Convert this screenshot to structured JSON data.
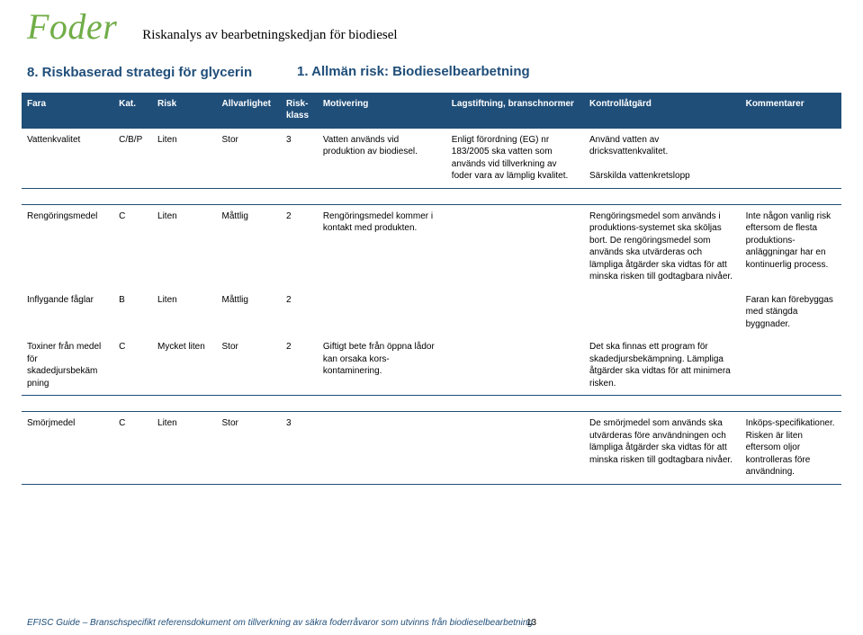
{
  "header": {
    "brand": "Foder",
    "tagline": "Riskanalys av bearbetningskedjan för biodiesel"
  },
  "titles": {
    "left": "8. Riskbaserad strategi för glycerin",
    "right": "1. Allmän risk: Biodieselbearbetning"
  },
  "columns": {
    "fara": "Fara",
    "kat": "Kat.",
    "risk": "Risk",
    "sev": "Allvarlighet",
    "klass": "Risk-klass",
    "motiv": "Motivering",
    "lag": "Lagstiftning, branschnormer",
    "ctrl": "Kontrollåtgärd",
    "komm": "Kommentarer"
  },
  "groups": [
    {
      "rows": [
        {
          "fara": "Vattenkvalitet",
          "kat": "C/B/P",
          "risk": "Liten",
          "sev": "Stor",
          "klass": "3",
          "motiv": "Vatten används vid produktion av biodiesel.",
          "lag": "Enligt förordning (EG) nr 183/2005 ska vatten som används vid tillverkning av foder vara av lämplig kvalitet.",
          "ctrl": "Använd vatten av dricksvattenkvalitet.\n\nSärskilda vattenkretslopp",
          "komm": ""
        }
      ]
    },
    {
      "rows": [
        {
          "fara": "Rengöringsmedel",
          "kat": "C",
          "risk": "Liten",
          "sev": "Måttlig",
          "klass": "2",
          "motiv": "Rengöringsmedel kommer i kontakt med produkten.",
          "lag": "",
          "ctrl": "Rengöringsmedel som används i produktions-systemet ska sköljas bort. De rengöringsmedel som används ska utvärderas och lämpliga åtgärder ska vidtas för att minska risken till godtagbara nivåer.",
          "komm": "Inte någon vanlig risk eftersom de flesta produktions-anläggningar har en kontinuerlig process."
        },
        {
          "fara": "Inflygande fåglar",
          "kat": "B",
          "risk": "Liten",
          "sev": "Måttlig",
          "klass": "2",
          "motiv": "",
          "lag": "",
          "ctrl": "",
          "komm": "Faran kan förebyggas med stängda byggnader."
        },
        {
          "fara": "Toxiner från medel för skadedjursbekäm pning",
          "kat": "C",
          "risk": "Mycket liten",
          "sev": "Stor",
          "klass": "2",
          "motiv": "Giftigt bete från öppna lådor kan orsaka kors-kontaminering.",
          "lag": "",
          "ctrl": "Det ska finnas ett program för skadedjursbekämpning. Lämpliga åtgärder ska vidtas för att minimera risken.",
          "komm": ""
        }
      ]
    },
    {
      "rows": [
        {
          "fara": "Smörjmedel",
          "kat": "C",
          "risk": "Liten",
          "sev": "Stor",
          "klass": "3",
          "motiv": "",
          "lag": "",
          "ctrl": "De smörjmedel som används ska utvärderas före användningen och lämpliga åtgärder ska vidtas för att minska risken till godtagbara nivåer.",
          "komm": "Inköps-specifikationer. Risken är liten eftersom oljor kontrolleras före användning."
        }
      ]
    }
  ],
  "footer": {
    "text": "EFISC Guide – Branschspecifikt referensdokument om tillverkning av säkra foderråvaror som utvinns från biodieselbearbetning",
    "page": "13"
  },
  "colors": {
    "brand": "#70ad47",
    "accent": "#1f4e79",
    "headerbg": "#1f4e79",
    "headerfg": "#ffffff",
    "bg": "#ffffff"
  }
}
